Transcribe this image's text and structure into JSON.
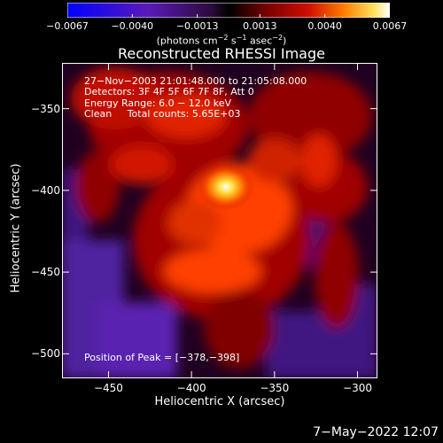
{
  "chart_data": {
    "type": "heatmap",
    "title": "Reconstructed RHESSI Image",
    "xlabel": "Heliocentric X (arcsec)",
    "ylabel": "Heliocentric Y (arcsec)",
    "xlim": [
      -478,
      -288
    ],
    "ylim": [
      -515,
      -322
    ],
    "x_ticks": [
      -450,
      -400,
      -350,
      -300
    ],
    "x_tick_labels": [
      "−450",
      "−400",
      "−350",
      "−300"
    ],
    "y_ticks": [
      -350,
      -400,
      -450,
      -500
    ],
    "y_tick_labels": [
      "−350",
      "−400",
      "−450",
      "−500"
    ],
    "colorbar": {
      "min": -0.0067,
      "max": 0.0067,
      "ticks": [
        -0.0067,
        -0.004,
        -0.0013,
        0.0013,
        0.004,
        0.0067
      ],
      "tick_labels": [
        "−0.0067",
        "−0.0040",
        "−0.0013",
        "0.0013",
        "0.0040",
        "0.0067"
      ],
      "unit_main": "(photons cm",
      "unit_sup1": "−2",
      "unit_mid": " s",
      "unit_sup2": "−1",
      "unit_mid2": " asec",
      "unit_sup3": "−2",
      "unit_end": ")"
    },
    "peak": [
      -378,
      -398
    ],
    "peak_value": 0.0067
  },
  "annotation": {
    "line1": "27−Nov−2003 21:01:48.000 to 21:05:08.000",
    "line2": "Detectors: 3F 4F 5F 6F 7F 8F, Att 0",
    "line3": "Energy Range: 6.0 − 12.0 keV",
    "line4": "Clean     Total counts: 5.65E+03",
    "peak_text": "Position of Peak = [−378,−398]"
  },
  "footer": {
    "timestamp": "7−May−2022 12:07"
  }
}
